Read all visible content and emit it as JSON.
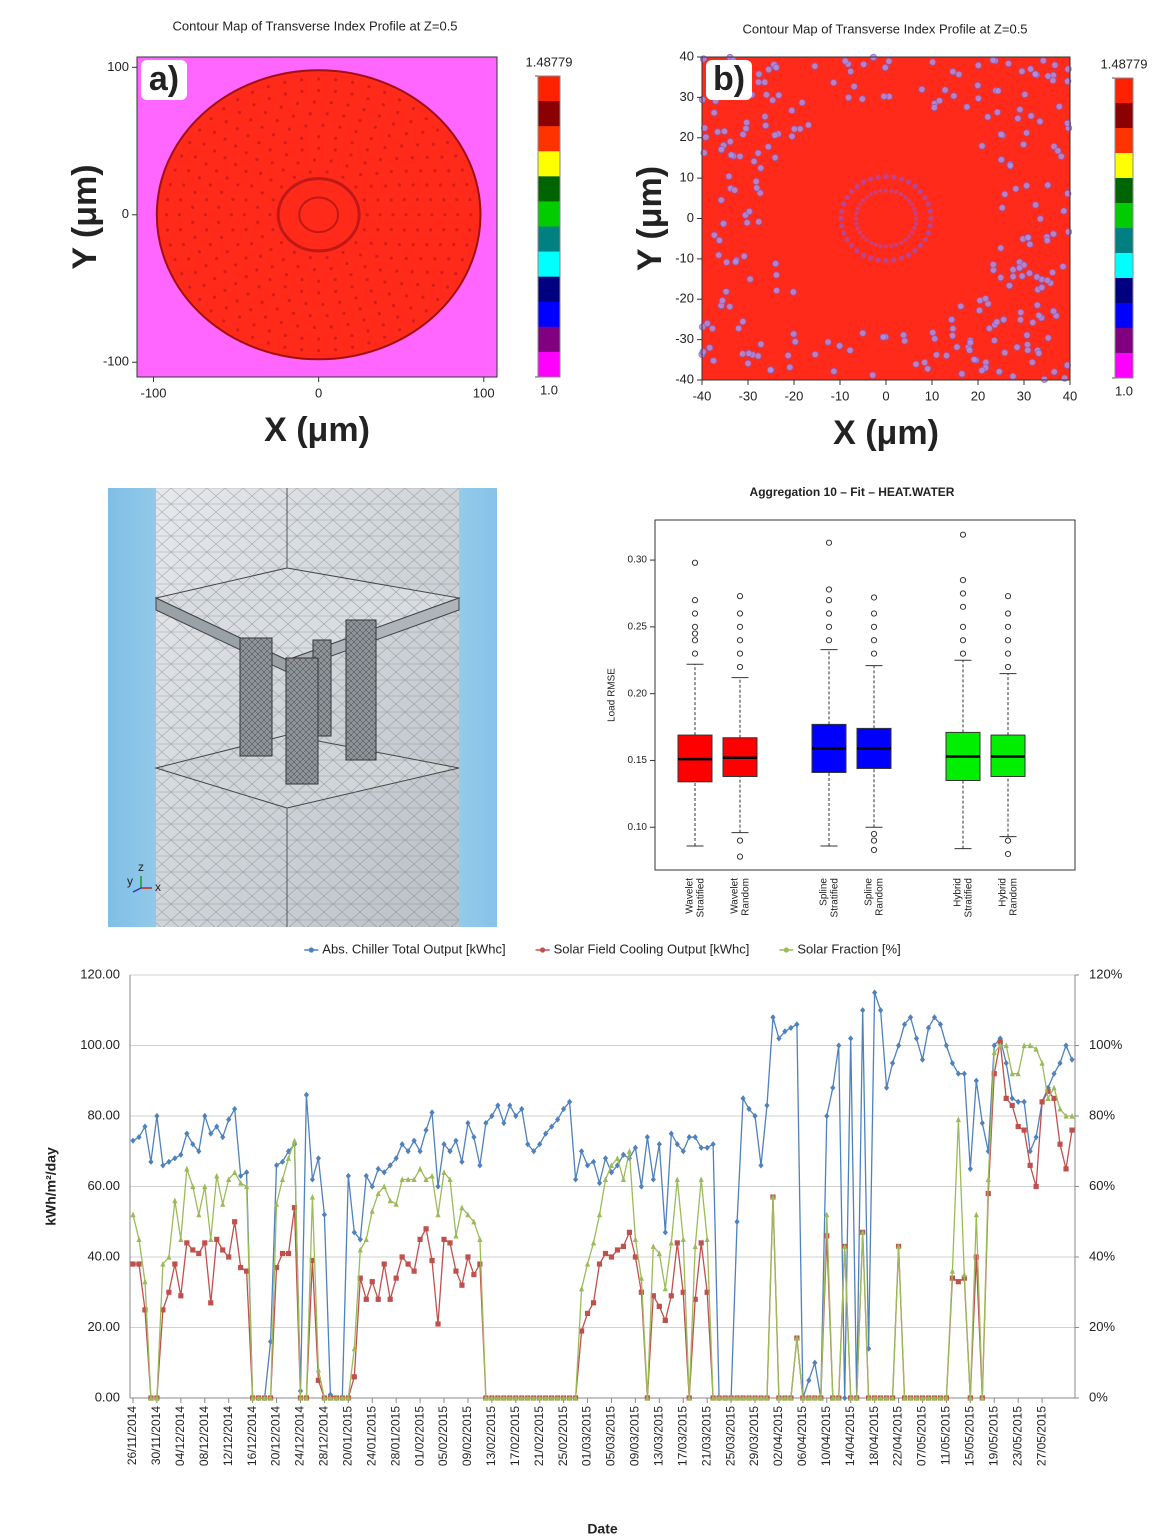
{
  "chart_data": [
    {
      "type": "contour",
      "title": "Contour Map of Transverse Index Profile at Z=0.5",
      "panel_label": "a)",
      "xlabel": "X (μm)",
      "ylabel": "Y (μm)",
      "xlim": [
        -110,
        108
      ],
      "ylim": [
        -110,
        107
      ],
      "xticks": [
        -100,
        0,
        100
      ],
      "yticks": [
        -100,
        0,
        100
      ],
      "colorbar_lim": [
        1,
        1.48779
      ],
      "colorbar_ticks": [
        {
          "value": 1,
          "label": "1.0"
        },
        1.48779
      ],
      "colorbar_colors": [
        "#ff2200",
        "#8b0000",
        "#ff3300",
        "#ffff00",
        "#006400",
        "#00cc00",
        "#008080",
        "#00ffff",
        "#000080",
        "#0000ff",
        "#800080",
        "#ff00ff"
      ],
      "background": "#ff66ff",
      "core_color": "#ff2a1a"
    },
    {
      "type": "contour",
      "title": "Contour Map of Transverse Index Profile at Z=0.5",
      "panel_label": "b)",
      "xlabel": "X (μm)",
      "ylabel": "Y (μm)",
      "xlim": [
        -40,
        40
      ],
      "ylim": [
        -40,
        40
      ],
      "xticks": [
        -40,
        -30,
        -20,
        -10,
        0,
        10,
        20,
        30,
        40
      ],
      "yticks": [
        -40,
        -30,
        -20,
        -10,
        0,
        10,
        20,
        30,
        40
      ],
      "colorbar_lim": [
        1,
        1.48779
      ],
      "colorbar_ticks": [
        {
          "value": 1,
          "label": "1.0"
        },
        1.48779
      ],
      "colorbar_colors": [
        "#ff2200",
        "#8b0000",
        "#ff3300",
        "#ffff00",
        "#006400",
        "#00cc00",
        "#008080",
        "#00ffff",
        "#000080",
        "#0000ff",
        "#800080",
        "#ff00ff"
      ],
      "background": "#ff2a1a",
      "core_color": "#ff2a1a"
    },
    {
      "type": "mesh",
      "axis_labels": [
        "y",
        "z",
        "x"
      ]
    },
    {
      "type": "box",
      "title": "Aggregation 10 – Fit – HEAT.WATER",
      "ylabel": "Load RMSE",
      "ylim": [
        0.068,
        0.33
      ],
      "yticks": [
        {
          "value": 0.1,
          "label": "0.10"
        },
        0.15,
        {
          "value": 0.2,
          "label": "0.20"
        },
        0.25,
        {
          "value": 0.3,
          "label": "0.30"
        }
      ],
      "categories": [
        [
          "Wavelet",
          "Stratified"
        ],
        [
          "Wavelet",
          "Random"
        ],
        [
          "Spline",
          "Stratified"
        ],
        [
          "Spline",
          "Random"
        ],
        [
          "Hybrid",
          "Stratified"
        ],
        [
          "Hybrid",
          "Random"
        ]
      ],
      "boxes": [
        {
          "color": "#ff0000",
          "whisker_low": 0.086,
          "q1": 0.134,
          "median": 0.151,
          "q3": 0.169,
          "whisker_high": 0.222,
          "outliers": [
            0.23,
            0.24,
            0.245,
            0.25,
            0.26,
            0.27,
            0.298
          ]
        },
        {
          "color": "#ff0000",
          "whisker_low": 0.096,
          "q1": 0.138,
          "median": 0.152,
          "q3": 0.167,
          "whisker_high": 0.212,
          "outliers": [
            0.078,
            0.09,
            0.22,
            0.23,
            0.24,
            0.25,
            0.26,
            0.273
          ]
        },
        {
          "color": "#0000ff",
          "whisker_low": 0.086,
          "q1": 0.141,
          "median": 0.159,
          "q3": 0.177,
          "whisker_high": 0.233,
          "outliers": [
            0.24,
            0.25,
            0.26,
            0.27,
            0.278,
            0.313
          ]
        },
        {
          "color": "#0000ff",
          "whisker_low": 0.1,
          "q1": 0.144,
          "median": 0.159,
          "q3": 0.174,
          "whisker_high": 0.221,
          "outliers": [
            0.083,
            0.09,
            0.095,
            0.23,
            0.24,
            0.25,
            0.26,
            0.272
          ]
        },
        {
          "color": "#00ee00",
          "whisker_low": 0.084,
          "q1": 0.135,
          "median": 0.153,
          "q3": 0.171,
          "whisker_high": 0.225,
          "outliers": [
            0.23,
            0.24,
            0.25,
            0.265,
            0.275,
            0.285,
            0.319
          ]
        },
        {
          "color": "#00ee00",
          "whisker_low": 0.093,
          "q1": 0.138,
          "median": 0.153,
          "q3": 0.169,
          "whisker_high": 0.215,
          "outliers": [
            0.08,
            0.09,
            0.22,
            0.23,
            0.24,
            0.25,
            0.26,
            0.273
          ]
        }
      ]
    },
    {
      "type": "line",
      "xlabel": "Date",
      "ylabel": "kWh/m²/day",
      "ylim": [
        0,
        120
      ],
      "yticks": [
        {
          "value": 0,
          "label": "0.00"
        },
        {
          "value": 20,
          "label": "20.00"
        },
        {
          "value": 40,
          "label": "40.00"
        },
        {
          "value": 60,
          "label": "60.00"
        },
        {
          "value": 80,
          "label": "80.00"
        },
        {
          "value": 100,
          "label": "100.00"
        },
        {
          "value": 120,
          "label": "120.00"
        }
      ],
      "y2lim": [
        0,
        120
      ],
      "y2ticks": [
        {
          "value": 0,
          "label": "0%"
        },
        {
          "value": 20,
          "label": "20%"
        },
        {
          "value": 40,
          "label": "40%"
        },
        {
          "value": 60,
          "label": "60%"
        },
        {
          "value": 80,
          "label": "80%"
        },
        {
          "value": 100,
          "label": "100%"
        },
        {
          "value": 120,
          "label": "120%"
        }
      ],
      "grid": true,
      "legend": "top",
      "categories": [
        "26/11/2014",
        null,
        null,
        null,
        "30/11/2014",
        null,
        null,
        null,
        "04/12/2014",
        null,
        null,
        null,
        "08/12/2014",
        null,
        null,
        null,
        "12/12/2014",
        null,
        null,
        null,
        "16/12/2014",
        null,
        null,
        null,
        "20/12/2014",
        null,
        null,
        null,
        "24/12/2014",
        null,
        null,
        null,
        "28/12/2014",
        null,
        null,
        null,
        "20/01/2015",
        null,
        null,
        null,
        "24/01/2015",
        null,
        null,
        null,
        "28/01/2015",
        null,
        null,
        null,
        "01/02/2015",
        null,
        null,
        null,
        "05/02/2015",
        null,
        null,
        null,
        "09/02/2015",
        null,
        null,
        null,
        "13/02/2015",
        null,
        null,
        null,
        "17/02/2015",
        null,
        null,
        null,
        "21/02/2015",
        null,
        null,
        null,
        "25/02/2015",
        null,
        null,
        null,
        "01/03/2015",
        null,
        null,
        null,
        "05/03/2015",
        null,
        null,
        null,
        "09/03/2015",
        null,
        null,
        null,
        "13/03/2015",
        null,
        null,
        null,
        "17/03/2015",
        null,
        null,
        null,
        "21/03/2015",
        null,
        null,
        null,
        "25/03/2015",
        null,
        null,
        null,
        "29/03/2015",
        null,
        null,
        null,
        "02/04/2015",
        null,
        null,
        null,
        "06/04/2015",
        null,
        null,
        null,
        "10/04/2015",
        null,
        null,
        null,
        "14/04/2015",
        null,
        null,
        null,
        "18/04/2015",
        null,
        null,
        null,
        "22/04/2015",
        null,
        null,
        null,
        "07/05/2015",
        null,
        null,
        null,
        "11/05/2015",
        null,
        null,
        null,
        "15/05/2015",
        null,
        null,
        null,
        "19/05/2015",
        null,
        null,
        null,
        "23/05/2015",
        null,
        null,
        null,
        "27/05/2015",
        null,
        null,
        null,
        null,
        null
      ],
      "series": [
        {
          "name": "Abs. Chiller Total Output [kWhc]",
          "color": "#4f81bd",
          "marker": "diamond",
          "values": [
            73,
            74,
            77,
            67,
            80,
            66,
            67,
            68,
            69,
            75,
            72,
            70,
            80,
            75,
            77,
            74,
            79,
            82,
            63,
            64,
            0,
            0,
            0,
            16,
            66,
            67,
            70,
            72,
            2,
            86,
            62,
            68,
            52,
            1,
            0,
            0,
            63,
            47,
            45,
            63,
            60,
            65,
            64,
            66,
            68,
            72,
            70,
            73,
            70,
            76,
            81,
            60,
            72,
            70,
            73,
            67,
            78,
            74,
            66,
            78,
            80,
            83,
            78,
            83,
            80,
            82,
            72,
            70,
            72,
            75,
            77,
            79,
            82,
            84,
            62,
            70,
            66,
            67,
            61,
            68,
            64,
            66,
            69,
            68,
            71,
            60,
            74,
            62,
            72,
            47,
            75,
            72,
            70,
            74,
            74,
            71,
            71,
            72,
            0,
            0,
            0,
            50,
            85,
            82,
            80,
            66,
            83,
            108,
            102,
            104,
            105,
            106,
            0,
            5,
            10,
            0,
            80,
            88,
            100,
            0,
            102,
            0,
            110,
            14,
            115,
            110,
            88,
            95,
            100,
            106,
            108,
            102,
            96,
            105,
            108,
            106,
            100,
            95,
            92,
            92,
            65,
            90,
            78,
            70,
            100,
            102,
            95,
            85,
            84,
            84,
            70,
            74,
            84,
            88,
            92,
            95,
            100,
            96
          ]
        },
        {
          "name": "Solar Field Cooling Output [kWhc]",
          "color": "#c0504d",
          "marker": "square",
          "values": [
            38,
            38,
            25,
            0,
            0,
            25,
            30,
            38,
            29,
            44,
            42,
            41,
            44,
            27,
            45,
            42,
            40,
            50,
            37,
            36,
            0,
            0,
            0,
            0,
            37,
            41,
            41,
            54,
            0,
            0,
            39,
            5,
            0,
            0,
            0,
            0,
            0,
            6,
            34,
            28,
            33,
            28,
            38,
            28,
            34,
            40,
            38,
            36,
            45,
            48,
            39,
            21,
            45,
            44,
            36,
            32,
            40,
            35,
            38,
            0,
            0,
            0,
            0,
            0,
            0,
            0,
            0,
            0,
            0,
            0,
            0,
            0,
            0,
            0,
            0,
            19,
            24,
            27,
            38,
            41,
            40,
            42,
            43,
            47,
            40,
            30,
            0,
            29,
            26,
            22,
            29,
            44,
            30,
            0,
            28,
            44,
            30,
            0,
            0,
            0,
            0,
            0,
            0,
            0,
            0,
            0,
            0,
            57,
            0,
            0,
            0,
            17,
            0,
            0,
            0,
            0,
            46,
            0,
            0,
            43,
            0,
            0,
            47,
            0,
            0,
            0,
            0,
            0,
            43,
            0,
            0,
            0,
            0,
            0,
            0,
            0,
            0,
            34,
            33,
            34,
            0,
            40,
            0,
            58,
            92,
            101,
            85,
            83,
            77,
            76,
            66,
            60,
            84,
            87,
            85,
            72,
            65,
            76
          ]
        },
        {
          "name": "Solar Fraction [%]",
          "color": "#9bbb59",
          "marker": "triangle",
          "axis": "y2",
          "values": [
            52,
            45,
            33,
            0,
            0,
            38,
            40,
            56,
            45,
            65,
            60,
            52,
            60,
            45,
            63,
            55,
            62,
            64,
            61,
            60,
            0,
            0,
            0,
            0,
            55,
            62,
            68,
            73,
            0,
            0,
            57,
            8,
            0,
            0,
            0,
            0,
            0,
            14,
            42,
            45,
            53,
            58,
            60,
            56,
            55,
            62,
            62,
            62,
            65,
            62,
            63,
            52,
            64,
            62,
            46,
            54,
            52,
            50,
            45,
            0,
            0,
            0,
            0,
            0,
            0,
            0,
            0,
            0,
            0,
            0,
            0,
            0,
            0,
            0,
            0,
            31,
            38,
            44,
            52,
            62,
            66,
            68,
            62,
            70,
            45,
            34,
            0,
            43,
            41,
            31,
            44,
            62,
            45,
            0,
            43,
            62,
            45,
            0,
            0,
            0,
            0,
            0,
            0,
            0,
            0,
            0,
            0,
            57,
            0,
            0,
            0,
            17,
            0,
            0,
            0,
            0,
            52,
            0,
            0,
            43,
            0,
            0,
            47,
            0,
            0,
            0,
            0,
            0,
            43,
            0,
            0,
            0,
            0,
            0,
            0,
            0,
            0,
            36,
            79,
            35,
            0,
            52,
            0,
            62,
            98,
            100,
            100,
            92,
            92,
            100,
            100,
            99,
            95,
            85,
            88,
            82,
            80,
            80
          ]
        }
      ]
    }
  ]
}
